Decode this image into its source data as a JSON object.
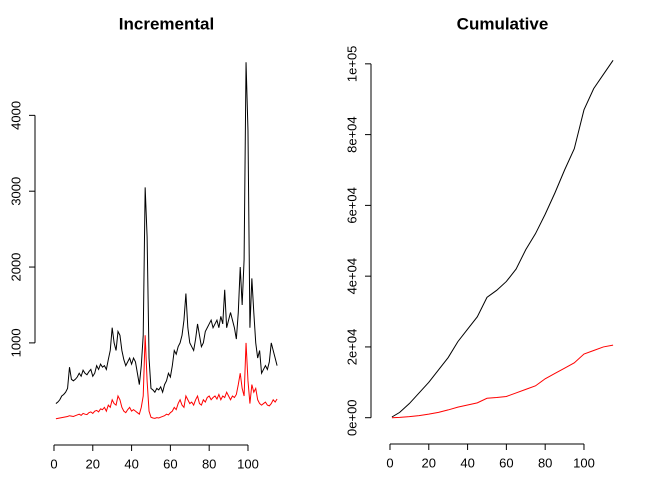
{
  "chart_data": [
    {
      "type": "line",
      "title": "Incremental",
      "x": [
        1,
        2,
        3,
        4,
        5,
        6,
        7,
        8,
        9,
        10,
        11,
        12,
        13,
        14,
        15,
        16,
        17,
        18,
        19,
        20,
        21,
        22,
        23,
        24,
        25,
        26,
        27,
        28,
        29,
        30,
        31,
        32,
        33,
        34,
        35,
        36,
        37,
        38,
        39,
        40,
        41,
        42,
        43,
        44,
        45,
        46,
        47,
        48,
        49,
        50,
        51,
        52,
        53,
        54,
        55,
        56,
        57,
        58,
        59,
        60,
        61,
        62,
        63,
        64,
        65,
        66,
        67,
        68,
        69,
        70,
        71,
        72,
        73,
        74,
        75,
        76,
        77,
        78,
        79,
        80,
        81,
        82,
        83,
        84,
        85,
        86,
        87,
        88,
        89,
        90,
        91,
        92,
        93,
        94,
        95,
        96,
        97,
        98,
        99,
        100,
        101,
        102,
        103,
        104,
        105,
        106,
        107,
        108,
        109,
        110,
        111,
        112,
        113,
        114,
        115
      ],
      "series": [
        {
          "color": "#000000",
          "values": [
            200,
            220,
            250,
            300,
            320,
            350,
            400,
            680,
            520,
            500,
            520,
            550,
            600,
            560,
            640,
            600,
            580,
            620,
            650,
            560,
            600,
            700,
            650,
            720,
            680,
            700,
            650,
            780,
            900,
            1200,
            1000,
            900,
            1150,
            1100,
            900,
            780,
            700,
            750,
            800,
            720,
            800,
            750,
            600,
            450,
            700,
            1100,
            3050,
            2400,
            800,
            400,
            380,
            350,
            400,
            380,
            420,
            350,
            450,
            500,
            600,
            550,
            700,
            900,
            850,
            950,
            1000,
            1100,
            1300,
            1650,
            1200,
            1000,
            950,
            900,
            1050,
            1250,
            1100,
            950,
            1000,
            1150,
            1200,
            1250,
            1300,
            1200,
            1250,
            1300,
            1200,
            1350,
            1250,
            1700,
            1200,
            1300,
            1400,
            1300,
            1200,
            1050,
            1400,
            2000,
            1500,
            2100,
            4700,
            3800,
            1200,
            1850,
            1400,
            1000,
            800,
            900,
            600,
            650,
            700,
            650,
            750,
            1000,
            900,
            800,
            700
          ]
        },
        {
          "color": "#ff0000",
          "values": [
            0,
            5,
            10,
            15,
            20,
            25,
            30,
            40,
            35,
            30,
            40,
            50,
            60,
            45,
            70,
            60,
            55,
            80,
            90,
            70,
            100,
            110,
            90,
            130,
            120,
            150,
            100,
            180,
            150,
            250,
            200,
            180,
            300,
            250,
            150,
            100,
            80,
            120,
            150,
            100,
            120,
            100,
            80,
            60,
            150,
            300,
            1100,
            500,
            100,
            20,
            10,
            5,
            15,
            10,
            20,
            30,
            40,
            60,
            50,
            80,
            100,
            150,
            120,
            200,
            250,
            180,
            150,
            300,
            250,
            200,
            220,
            180,
            250,
            300,
            200,
            180,
            250,
            220,
            280,
            300,
            250,
            280,
            300,
            260,
            320,
            250,
            300,
            280,
            350,
            300,
            250,
            300,
            280,
            320,
            450,
            600,
            400,
            300,
            1000,
            500,
            200,
            450,
            350,
            400,
            250,
            200,
            180,
            200,
            220,
            180,
            170,
            200,
            250,
            220,
            260
          ]
        }
      ],
      "xlim": [
        -3.6,
        119.6
      ],
      "ylim": [
        -188,
        4888
      ],
      "xticks": [
        0,
        20,
        40,
        60,
        80,
        100
      ],
      "yticks": [
        1000,
        2000,
        3000,
        4000
      ]
    },
    {
      "type": "line",
      "title": "Cumulative",
      "x": [
        1,
        5,
        10,
        15,
        20,
        25,
        30,
        35,
        40,
        45,
        50,
        55,
        60,
        65,
        70,
        75,
        80,
        85,
        90,
        95,
        100,
        105,
        110,
        115
      ],
      "series": [
        {
          "color": "#000000",
          "values": [
            200,
            1500,
            4000,
            7000,
            10000,
            13500,
            17000,
            21500,
            25000,
            28500,
            34000,
            36000,
            38500,
            42000,
            47500,
            52000,
            57500,
            63500,
            70000,
            76000,
            87000,
            93000,
            97000,
            101000
          ]
        },
        {
          "color": "#ff0000",
          "values": [
            0,
            100,
            300,
            600,
            1000,
            1500,
            2200,
            3000,
            3600,
            4200,
            5500,
            5700,
            6000,
            7000,
            8000,
            9000,
            11000,
            12500,
            14000,
            15500,
            18000,
            19000,
            20000,
            20500
          ]
        }
      ],
      "xlim": [
        -3.6,
        119.6
      ],
      "ylim": [
        -4040,
        105040
      ],
      "xticks": [
        0,
        20,
        40,
        60,
        80,
        100
      ],
      "yticks": [
        {
          "value": 0,
          "label": "0e+00"
        },
        {
          "value": 20000,
          "label": "2e+04"
        },
        {
          "value": 40000,
          "label": "4e+04"
        },
        {
          "value": 60000,
          "label": "6e+04"
        },
        {
          "value": 80000,
          "label": "8e+04"
        },
        {
          "value": 100000,
          "label": "1e+05"
        }
      ]
    }
  ]
}
